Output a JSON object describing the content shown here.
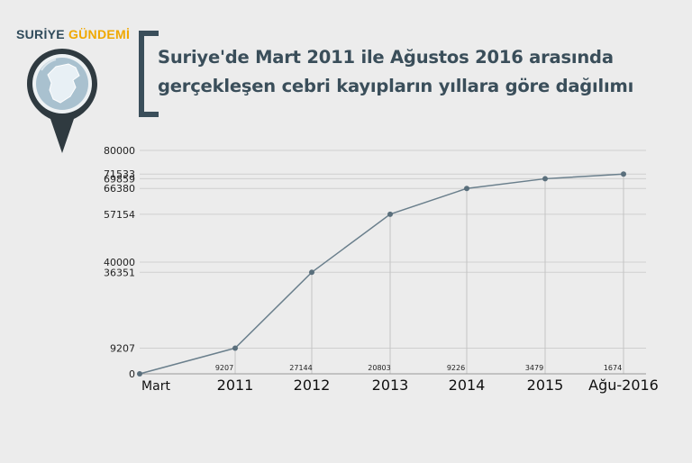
{
  "logo": {
    "part1": "SURİYE",
    "part2": "GÜNDEMİ",
    "icon": "map-pin-icon"
  },
  "header": {
    "title_line1": "Suriye'de Mart 2011 ile Ağustos 2016 arasında",
    "title_line2": "gerçekleşen cebri kayıpların yıllara göre dağılımı"
  },
  "colors": {
    "accent": "#f0a800",
    "dark": "#2f4a5a",
    "line": "#6a7f8c"
  },
  "chart_data": {
    "type": "line",
    "categories": [
      "Mart",
      "2011",
      "2012",
      "2013",
      "2014",
      "2015",
      "Ağu-2016"
    ],
    "series": [
      {
        "values": [
          0,
          9207,
          36351,
          57154,
          66380,
          69859,
          71533
        ]
      }
    ],
    "data_labels": [
      "",
      "9207",
      "27144",
      "20803",
      "9226",
      "3479",
      "1674"
    ],
    "y_ticks": [
      0,
      9207,
      36351,
      40000,
      57154,
      66380,
      69859,
      71533,
      80000
    ],
    "ylim": [
      0,
      80000
    ],
    "grid": true,
    "title": "",
    "xlabel": "",
    "ylabel": ""
  }
}
